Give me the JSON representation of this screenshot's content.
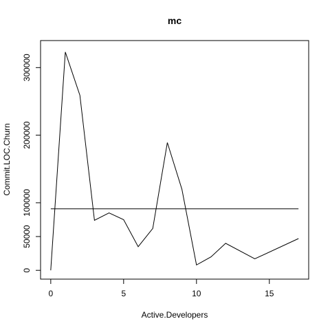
{
  "chart_data": {
    "type": "line",
    "title": "mc",
    "xlabel": "Active.Developers",
    "ylabel": "Commit.LOC.Churn",
    "xlim": [
      -0.7,
      17.7
    ],
    "ylim": [
      -13000,
      340000
    ],
    "x_ticks": [
      0,
      5,
      10,
      15
    ],
    "y_ticks": [
      0,
      50000,
      100000,
      200000,
      300000
    ],
    "series": [
      {
        "x": [
          0,
          1,
          2,
          3,
          4,
          5,
          6,
          7,
          8,
          9,
          10,
          11,
          12,
          14,
          17
        ],
        "values": [
          0,
          323000,
          259000,
          74000,
          85000,
          75000,
          35000,
          62000,
          189000,
          120000,
          8000,
          20000,
          40000,
          17000,
          47000
        ]
      }
    ],
    "reference_line": {
      "y": 91000,
      "x_start": 0,
      "x_end": 17
    },
    "grid": false,
    "legend": "none"
  }
}
